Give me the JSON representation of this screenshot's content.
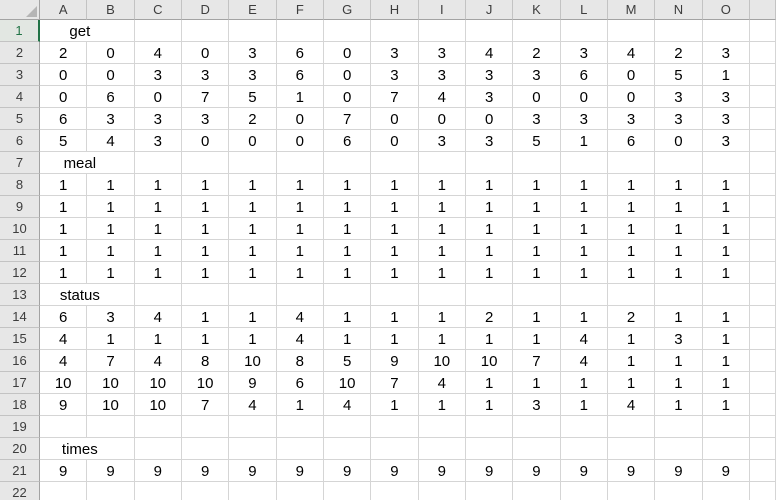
{
  "colors": {
    "selection_accent": "#217346",
    "header_background": "#e7e7e7",
    "active_header_background": "#e2e7e2",
    "gridline": "#d5d5d5",
    "header_separator": "#c3c3c3",
    "header_boundary": "#a3a3a3",
    "cell_text": "#000000",
    "header_text": "#3d3d3d",
    "select_all_triangle": "#b5b5b5"
  },
  "sheet": {
    "column_headers": [
      "A",
      "B",
      "C",
      "D",
      "E",
      "F",
      "G",
      "H",
      "I",
      "J",
      "K",
      "L",
      "M",
      "N",
      "O"
    ],
    "active_cell": "A1",
    "active_row_header": "1",
    "rows": [
      {
        "n": "1",
        "label": "get"
      },
      {
        "n": "2",
        "cells": [
          "2",
          "0",
          "4",
          "0",
          "3",
          "6",
          "0",
          "3",
          "3",
          "4",
          "2",
          "3",
          "4",
          "2",
          "3"
        ]
      },
      {
        "n": "3",
        "cells": [
          "0",
          "0",
          "3",
          "3",
          "3",
          "6",
          "0",
          "3",
          "3",
          "3",
          "3",
          "6",
          "0",
          "5",
          "1"
        ]
      },
      {
        "n": "4",
        "cells": [
          "0",
          "6",
          "0",
          "7",
          "5",
          "1",
          "0",
          "7",
          "4",
          "3",
          "0",
          "0",
          "0",
          "3",
          "3"
        ]
      },
      {
        "n": "5",
        "cells": [
          "6",
          "3",
          "3",
          "3",
          "2",
          "0",
          "7",
          "0",
          "0",
          "0",
          "3",
          "3",
          "3",
          "3",
          "3"
        ]
      },
      {
        "n": "6",
        "cells": [
          "5",
          "4",
          "3",
          "0",
          "0",
          "0",
          "6",
          "0",
          "3",
          "3",
          "5",
          "1",
          "6",
          "0",
          "3"
        ]
      },
      {
        "n": "7",
        "label": "meal"
      },
      {
        "n": "8",
        "cells": [
          "1",
          "1",
          "1",
          "1",
          "1",
          "1",
          "1",
          "1",
          "1",
          "1",
          "1",
          "1",
          "1",
          "1",
          "1"
        ]
      },
      {
        "n": "9",
        "cells": [
          "1",
          "1",
          "1",
          "1",
          "1",
          "1",
          "1",
          "1",
          "1",
          "1",
          "1",
          "1",
          "1",
          "1",
          "1"
        ]
      },
      {
        "n": "10",
        "cells": [
          "1",
          "1",
          "1",
          "1",
          "1",
          "1",
          "1",
          "1",
          "1",
          "1",
          "1",
          "1",
          "1",
          "1",
          "1"
        ]
      },
      {
        "n": "11",
        "cells": [
          "1",
          "1",
          "1",
          "1",
          "1",
          "1",
          "1",
          "1",
          "1",
          "1",
          "1",
          "1",
          "1",
          "1",
          "1"
        ]
      },
      {
        "n": "12",
        "cells": [
          "1",
          "1",
          "1",
          "1",
          "1",
          "1",
          "1",
          "1",
          "1",
          "1",
          "1",
          "1",
          "1",
          "1",
          "1"
        ]
      },
      {
        "n": "13",
        "label": "status"
      },
      {
        "n": "14",
        "cells": [
          "6",
          "3",
          "4",
          "1",
          "1",
          "4",
          "1",
          "1",
          "1",
          "2",
          "1",
          "1",
          "2",
          "1",
          "1"
        ]
      },
      {
        "n": "15",
        "cells": [
          "4",
          "1",
          "1",
          "1",
          "1",
          "4",
          "1",
          "1",
          "1",
          "1",
          "1",
          "4",
          "1",
          "3",
          "1"
        ]
      },
      {
        "n": "16",
        "cells": [
          "4",
          "7",
          "4",
          "8",
          "10",
          "8",
          "5",
          "9",
          "10",
          "10",
          "7",
          "4",
          "1",
          "1",
          "1"
        ]
      },
      {
        "n": "17",
        "cells": [
          "10",
          "10",
          "10",
          "10",
          "9",
          "6",
          "10",
          "7",
          "4",
          "1",
          "1",
          "1",
          "1",
          "1",
          "1"
        ]
      },
      {
        "n": "18",
        "cells": [
          "9",
          "10",
          "10",
          "7",
          "4",
          "1",
          "4",
          "1",
          "1",
          "1",
          "3",
          "1",
          "4",
          "1",
          "1"
        ]
      },
      {
        "n": "19",
        "cells": []
      },
      {
        "n": "20",
        "label": "times"
      },
      {
        "n": "21",
        "cells": [
          "9",
          "9",
          "9",
          "9",
          "9",
          "9",
          "9",
          "9",
          "9",
          "9",
          "9",
          "9",
          "9",
          "9",
          "9"
        ]
      },
      {
        "n": "22",
        "cells": []
      }
    ]
  }
}
